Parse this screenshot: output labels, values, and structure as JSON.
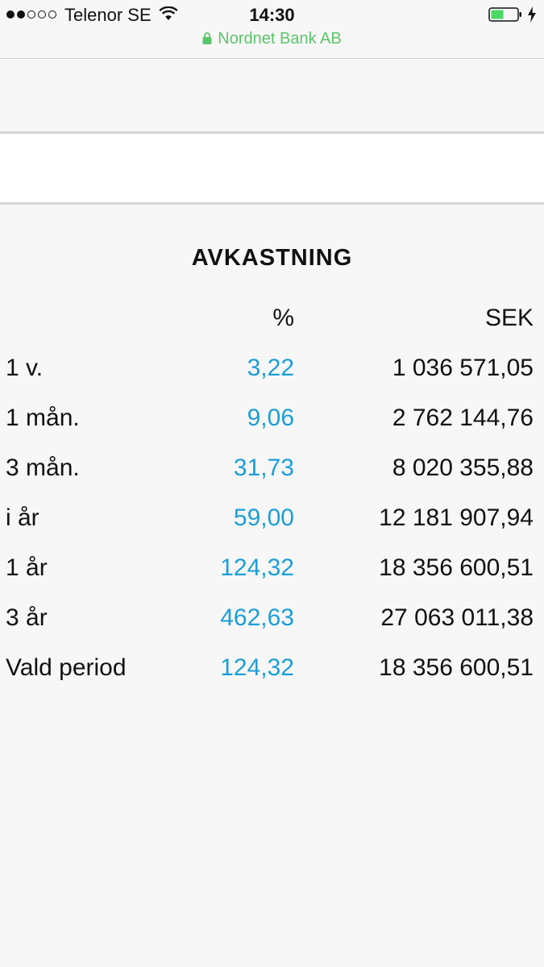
{
  "status_bar": {
    "carrier": "Telenor SE",
    "time": "14:30",
    "url": "Nordnet Bank AB"
  },
  "returns": {
    "title": "AVKASTNING",
    "columns": {
      "pct": "%",
      "sek": "SEK"
    },
    "rows": [
      {
        "period": "1 v.",
        "pct": "3,22",
        "sek": "1 036 571,05"
      },
      {
        "period": "1 mån.",
        "pct": "9,06",
        "sek": "2 762 144,76"
      },
      {
        "period": "3 mån.",
        "pct": "31,73",
        "sek": "8 020 355,88"
      },
      {
        "period": "i år",
        "pct": "59,00",
        "sek": "12 181 907,94"
      },
      {
        "period": "1 år",
        "pct": "124,32",
        "sek": "18 356 600,51"
      },
      {
        "period": "3 år",
        "pct": "462,63",
        "sek": "27 063 011,38"
      },
      {
        "period": "Vald period",
        "pct": "124,32",
        "sek": "18 356 600,51"
      }
    ]
  },
  "colors": {
    "accent_value": "#1a9ed8",
    "secure_url": "#5bc56a",
    "battery_fill": "#4cd964"
  },
  "icons": [
    "signal-dots-icon",
    "wifi-icon",
    "battery-icon",
    "charging-bolt-icon",
    "lock-icon"
  ]
}
